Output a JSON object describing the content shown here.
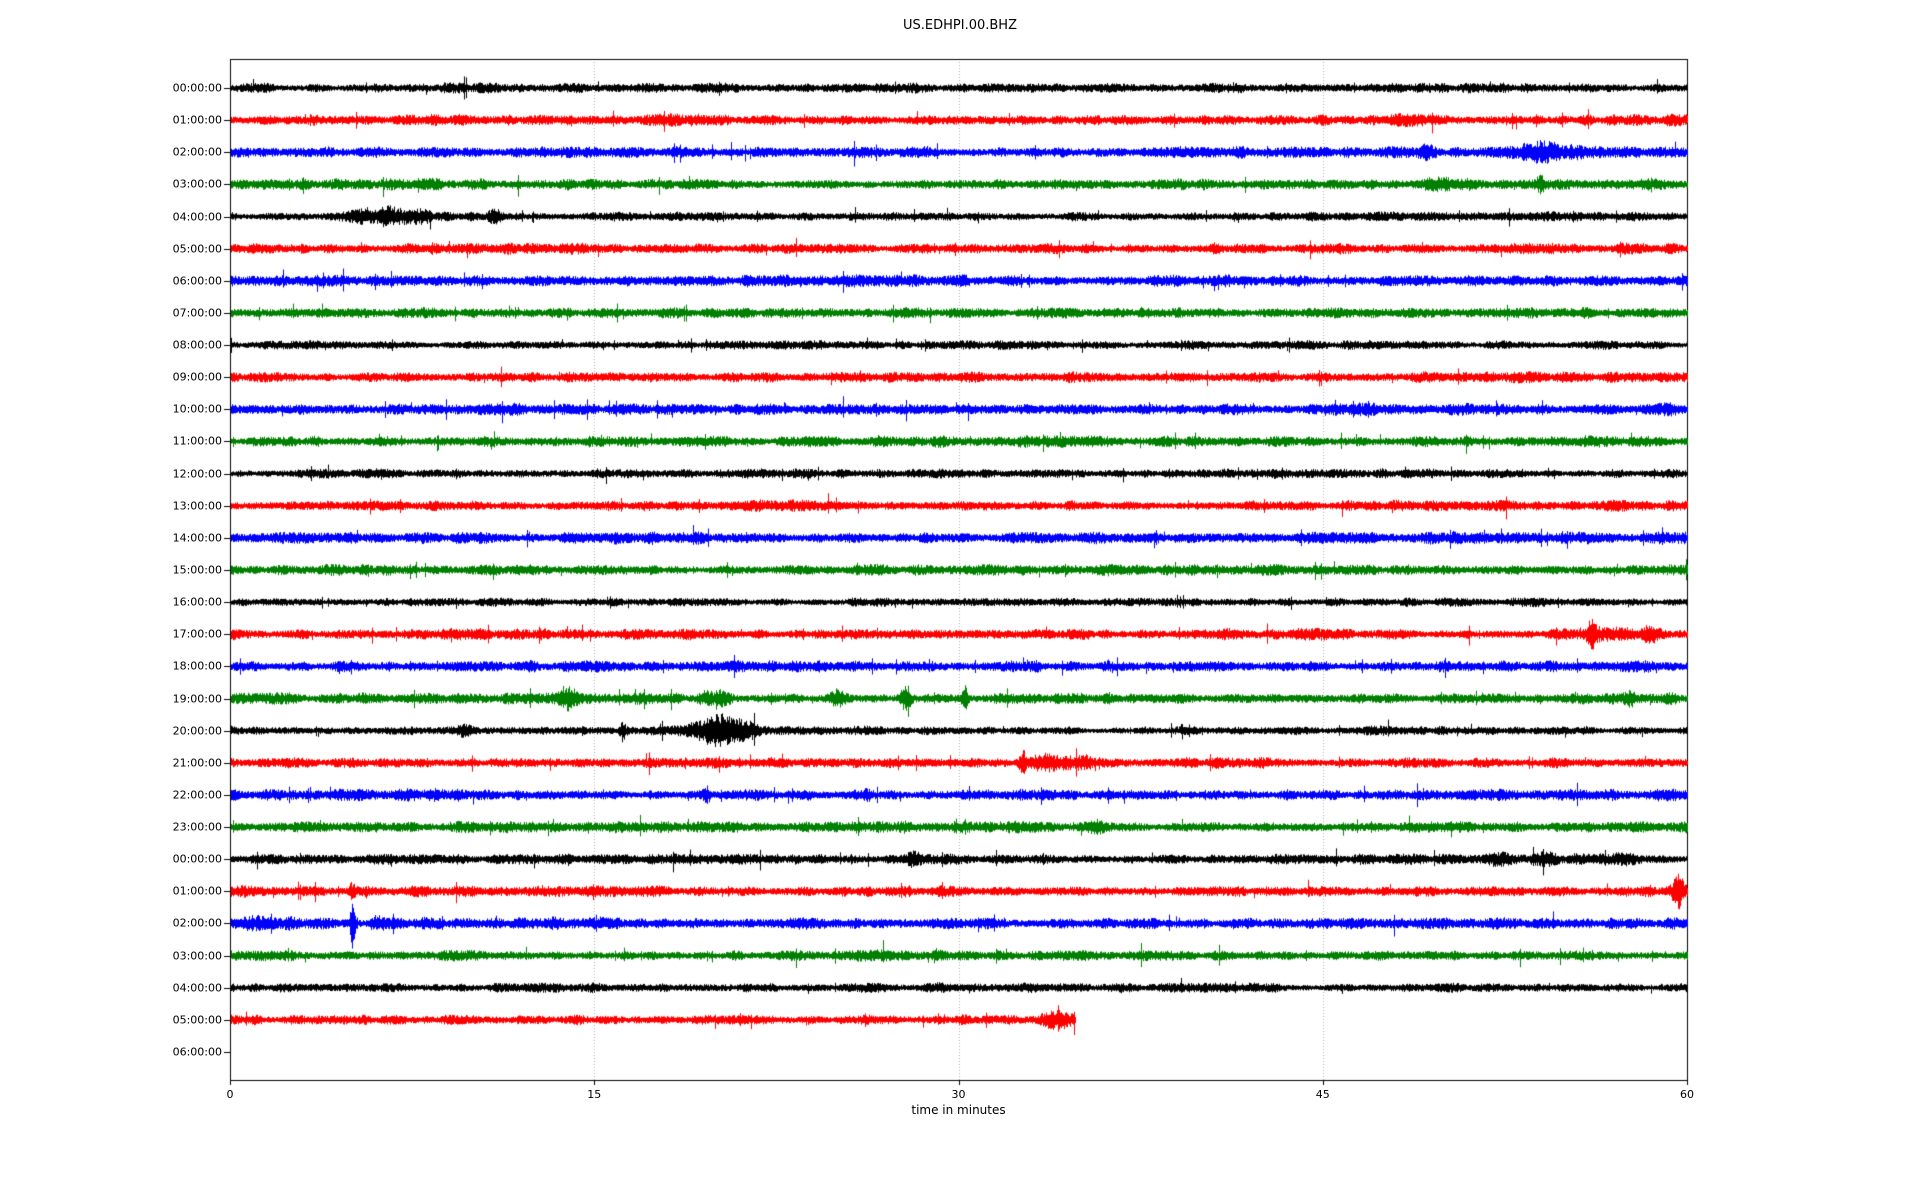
{
  "chart_data": {
    "type": "line",
    "title": "US.EDHPI.00.BHZ",
    "xlabel": "time in minutes",
    "xlim": [
      0,
      60
    ],
    "x_ticks": [
      0,
      15,
      30,
      45,
      60
    ],
    "grid_x": [
      15,
      30,
      45
    ],
    "legend": "none",
    "grid": "vertical-dotted",
    "colors": {
      "cycle": [
        "#000000",
        "#ff0000",
        "#0000ff",
        "#008000"
      ],
      "grid": "#b0b0b0",
      "spine": "#000000",
      "background": "#ffffff"
    },
    "description": "Helicorder-style day plot; one row per hour, x axis is minutes within the hour, traces are band-limited seismic noise with transient events",
    "rows": [
      {
        "label": "00:00:00",
        "color": "#000000",
        "end_min": 60,
        "amp": 3.8,
        "events": []
      },
      {
        "label": "01:00:00",
        "color": "#ff0000",
        "end_min": 60,
        "amp": 4.2,
        "events": [
          {
            "t": 48.0,
            "w": 1.2,
            "a": 1.6
          }
        ]
      },
      {
        "label": "02:00:00",
        "color": "#0000ff",
        "end_min": 60,
        "amp": 4.5,
        "events": [
          {
            "t": 49.2,
            "w": 0.5,
            "a": 2.2
          },
          {
            "t": 54.2,
            "w": 1.6,
            "a": 2.0
          }
        ]
      },
      {
        "label": "03:00:00",
        "color": "#008000",
        "end_min": 60,
        "amp": 4.4,
        "events": [
          {
            "t": 49.8,
            "w": 1.8,
            "a": 1.5
          },
          {
            "t": 53.9,
            "w": 0.25,
            "a": 2.2
          }
        ]
      },
      {
        "label": "04:00:00",
        "color": "#000000",
        "end_min": 60,
        "amp": 3.6,
        "events": [
          {
            "t": 6.7,
            "w": 2.4,
            "a": 3.0
          },
          {
            "t": 10.8,
            "w": 0.5,
            "a": 1.8
          }
        ]
      },
      {
        "label": "05:00:00",
        "color": "#ff0000",
        "end_min": 60,
        "amp": 4.2,
        "events": []
      },
      {
        "label": "06:00:00",
        "color": "#0000ff",
        "end_min": 60,
        "amp": 4.5,
        "events": []
      },
      {
        "label": "07:00:00",
        "color": "#008000",
        "end_min": 60,
        "amp": 4.3,
        "events": []
      },
      {
        "label": "08:00:00",
        "color": "#000000",
        "end_min": 60,
        "amp": 3.4,
        "events": []
      },
      {
        "label": "09:00:00",
        "color": "#ff0000",
        "end_min": 60,
        "amp": 4.1,
        "events": []
      },
      {
        "label": "10:00:00",
        "color": "#0000ff",
        "end_min": 60,
        "amp": 4.5,
        "events": []
      },
      {
        "label": "11:00:00",
        "color": "#008000",
        "end_min": 60,
        "amp": 4.2,
        "events": []
      },
      {
        "label": "12:00:00",
        "color": "#000000",
        "end_min": 60,
        "amp": 3.5,
        "events": []
      },
      {
        "label": "13:00:00",
        "color": "#ff0000",
        "end_min": 60,
        "amp": 4.2,
        "events": []
      },
      {
        "label": "14:00:00",
        "color": "#0000ff",
        "end_min": 60,
        "amp": 4.6,
        "events": [
          {
            "t": 56.0,
            "w": 1.5,
            "a": 1.3
          }
        ]
      },
      {
        "label": "15:00:00",
        "color": "#008000",
        "end_min": 60,
        "amp": 4.3,
        "events": []
      },
      {
        "label": "16:00:00",
        "color": "#000000",
        "end_min": 60,
        "amp": 3.4,
        "events": []
      },
      {
        "label": "17:00:00",
        "color": "#ff0000",
        "end_min": 60,
        "amp": 4.1,
        "events": [
          {
            "t": 56.0,
            "w": 0.3,
            "a": 4.0
          },
          {
            "t": 57.0,
            "w": 2.4,
            "a": 1.8
          },
          {
            "t": 58.4,
            "w": 0.4,
            "a": 2.2
          }
        ]
      },
      {
        "label": "18:00:00",
        "color": "#0000ff",
        "end_min": 60,
        "amp": 4.5,
        "events": []
      },
      {
        "label": "19:00:00",
        "color": "#008000",
        "end_min": 60,
        "amp": 4.3,
        "events": [
          {
            "t": 13.9,
            "w": 0.5,
            "a": 2.0
          },
          {
            "t": 19.5,
            "w": 0.4,
            "a": 1.8
          },
          {
            "t": 20.3,
            "w": 0.5,
            "a": 2.2
          },
          {
            "t": 25.0,
            "w": 0.4,
            "a": 2.2
          },
          {
            "t": 27.8,
            "w": 0.3,
            "a": 3.0
          },
          {
            "t": 30.2,
            "w": 0.15,
            "a": 4.5
          },
          {
            "t": 55.3,
            "w": 1.2,
            "a": 1.4
          },
          {
            "t": 57.6,
            "w": 0.3,
            "a": 2.0
          }
        ]
      },
      {
        "label": "20:00:00",
        "color": "#000000",
        "end_min": 60,
        "amp": 3.4,
        "events": [
          {
            "t": 9.6,
            "w": 0.4,
            "a": 1.6
          },
          {
            "t": 16.1,
            "w": 0.15,
            "a": 2.8
          },
          {
            "t": 19.9,
            "w": 1.6,
            "a": 3.6
          },
          {
            "t": 21.3,
            "w": 0.6,
            "a": 2.2
          }
        ]
      },
      {
        "label": "21:00:00",
        "color": "#ff0000",
        "end_min": 60,
        "amp": 4.1,
        "events": [
          {
            "t": 32.6,
            "w": 0.2,
            "a": 4.5
          },
          {
            "t": 33.8,
            "w": 1.8,
            "a": 2.0
          },
          {
            "t": 35.2,
            "w": 0.5,
            "a": 1.6
          }
        ]
      },
      {
        "label": "22:00:00",
        "color": "#0000ff",
        "end_min": 60,
        "amp": 4.5,
        "events": [
          {
            "t": 19.6,
            "w": 0.2,
            "a": 2.4
          },
          {
            "t": 26.2,
            "w": 0.3,
            "a": 1.5
          }
        ]
      },
      {
        "label": "23:00:00",
        "color": "#008000",
        "end_min": 60,
        "amp": 4.3,
        "events": [
          {
            "t": 35.7,
            "w": 0.5,
            "a": 1.6
          }
        ]
      },
      {
        "label": "00:00:00",
        "color": "#000000",
        "end_min": 60,
        "amp": 3.9,
        "events": [
          {
            "t": 28.0,
            "w": 0.5,
            "a": 1.9
          },
          {
            "t": 52.5,
            "w": 0.8,
            "a": 1.8
          },
          {
            "t": 54.0,
            "w": 0.8,
            "a": 2.0
          },
          {
            "t": 57.3,
            "w": 0.5,
            "a": 1.9
          }
        ]
      },
      {
        "label": "01:00:00",
        "color": "#ff0000",
        "end_min": 60,
        "amp": 4.3,
        "events": [
          {
            "t": 5.0,
            "w": 0.2,
            "a": 2.2
          },
          {
            "t": 59.6,
            "w": 0.3,
            "a": 3.2
          }
        ]
      },
      {
        "label": "02:00:00",
        "color": "#0000ff",
        "end_min": 60,
        "amp": 4.7,
        "events": [
          {
            "t": 1.5,
            "w": 2.5,
            "a": 1.5
          },
          {
            "t": 5.0,
            "w": 0.12,
            "a": 7.0
          },
          {
            "t": 6.3,
            "w": 0.8,
            "a": 1.6
          }
        ]
      },
      {
        "label": "03:00:00",
        "color": "#008000",
        "end_min": 60,
        "amp": 4.3,
        "events": []
      },
      {
        "label": "04:00:00",
        "color": "#000000",
        "end_min": 60,
        "amp": 3.7,
        "events": []
      },
      {
        "label": "05:00:00",
        "color": "#ff0000",
        "end_min": 34.8,
        "amp": 4.2,
        "events": [
          {
            "t": 34.1,
            "w": 1.0,
            "a": 2.0
          }
        ]
      },
      {
        "label": "06:00:00",
        "color": "#0000ff",
        "end_min": 0,
        "amp": 0,
        "events": []
      }
    ]
  }
}
